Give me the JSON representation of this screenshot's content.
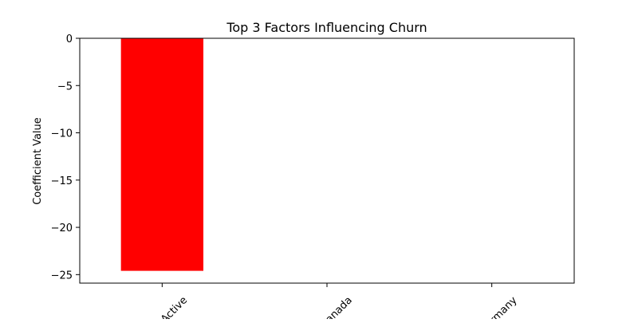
{
  "chart_data": {
    "type": "bar",
    "title": "Top 3 Factors Influencing Churn",
    "xlabel": "",
    "ylabel": "Coefficient Value",
    "categories": [
      "IsActive",
      "Canada",
      "Germany"
    ],
    "category_tick_labels_visible": [
      "active",
      "anada",
      "ermany"
    ],
    "values": [
      -24.6,
      0,
      0
    ],
    "ylim": [
      -25.9,
      0
    ],
    "yticks": [
      0,
      -5,
      -10,
      -15,
      -20,
      -25
    ],
    "ytick_labels": [
      "0",
      "−5",
      "−10",
      "−15",
      "−20",
      "−25"
    ],
    "bar_color": "#ff0000",
    "grid": false,
    "legend": "none"
  }
}
